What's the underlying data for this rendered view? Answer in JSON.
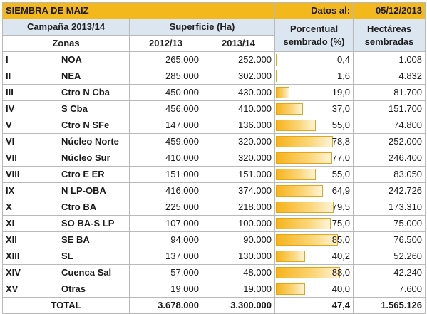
{
  "header": {
    "title": "SIEMBRA DE MAIZ",
    "date_label": "Datos al:",
    "date_value": "05/12/2013"
  },
  "columns": {
    "campaign": "Campaña 2013/14",
    "surface": "Superficie (Ha)",
    "percent": "Porcentual sembrado (%)",
    "hectares": "Hectáreas sembradas",
    "zones": "Zonas",
    "year1": "2012/13",
    "year2": "2013/14"
  },
  "rows": [
    {
      "num": "I",
      "zone": "NOA",
      "y1": "265.000",
      "y2": "252.000",
      "pct": "0,4",
      "pct_value": 0.4,
      "ha": "1.008"
    },
    {
      "num": "II",
      "zone": "NEA",
      "y1": "285.000",
      "y2": "302.000",
      "pct": "1,6",
      "pct_value": 1.6,
      "ha": "4.832"
    },
    {
      "num": "III",
      "zone": "Ctro N Cba",
      "y1": "450.000",
      "y2": "430.000",
      "pct": "19,0",
      "pct_value": 19.0,
      "ha": "81.700"
    },
    {
      "num": "IV",
      "zone": "S Cba",
      "y1": "456.000",
      "y2": "410.000",
      "pct": "37,0",
      "pct_value": 37.0,
      "ha": "151.700"
    },
    {
      "num": "V",
      "zone": "Ctro N SFe",
      "y1": "147.000",
      "y2": "136.000",
      "pct": "55,0",
      "pct_value": 55.0,
      "ha": "74.800"
    },
    {
      "num": "VI",
      "zone": "Núcleo Norte",
      "y1": "459.000",
      "y2": "320.000",
      "pct": "78,8",
      "pct_value": 78.8,
      "ha": "252.000"
    },
    {
      "num": "VII",
      "zone": "Núcleo Sur",
      "y1": "410.000",
      "y2": "320.000",
      "pct": "77,0",
      "pct_value": 77.0,
      "ha": "246.400"
    },
    {
      "num": "VIII",
      "zone": "Ctro E ER",
      "y1": "151.000",
      "y2": "151.000",
      "pct": "55,0",
      "pct_value": 55.0,
      "ha": "83.050"
    },
    {
      "num": "IX",
      "zone": "N LP-OBA",
      "y1": "416.000",
      "y2": "374.000",
      "pct": "64,9",
      "pct_value": 64.9,
      "ha": "242.726"
    },
    {
      "num": "X",
      "zone": "Ctro BA",
      "y1": "225.000",
      "y2": "218.000",
      "pct": "79,5",
      "pct_value": 79.5,
      "ha": "173.310"
    },
    {
      "num": "XI",
      "zone": "SO BA-S LP",
      "y1": "107.000",
      "y2": "100.000",
      "pct": "75,0",
      "pct_value": 75.0,
      "ha": "75.000"
    },
    {
      "num": "XII",
      "zone": "SE BA",
      "y1": "94.000",
      "y2": "90.000",
      "pct": "85,0",
      "pct_value": 85.0,
      "ha": "76.500"
    },
    {
      "num": "XIII",
      "zone": "SL",
      "y1": "137.000",
      "y2": "130.000",
      "pct": "40,2",
      "pct_value": 40.2,
      "ha": "52.260"
    },
    {
      "num": "XIV",
      "zone": "Cuenca Sal",
      "y1": "57.000",
      "y2": "48.000",
      "pct": "88,0",
      "pct_value": 88.0,
      "ha": "42.240"
    },
    {
      "num": "XV",
      "zone": "Otras",
      "y1": "19.000",
      "y2": "19.000",
      "pct": "40,0",
      "pct_value": 40.0,
      "ha": "7.600"
    }
  ],
  "total": {
    "label": "TOTAL",
    "y1": "3.678.000",
    "y2": "3.300.000",
    "pct": "47,4",
    "ha": "1.565.126"
  },
  "colors": {
    "title_bg": "#f2b81c",
    "header_bg": "#dce6f1",
    "bar": "#f7b31b"
  }
}
